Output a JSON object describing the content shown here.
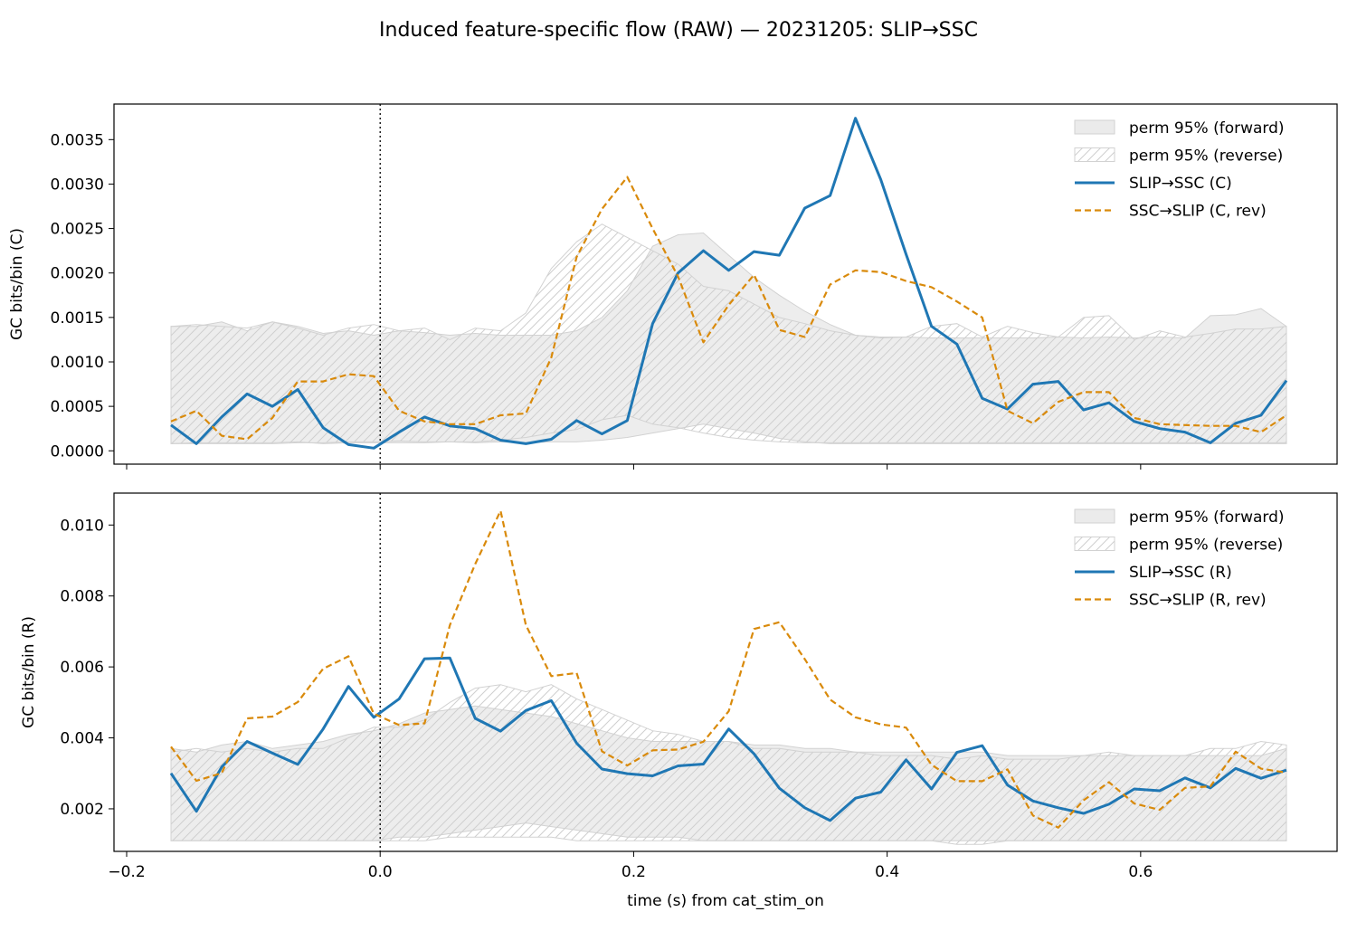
{
  "figure": {
    "title": "Induced feature-specific flow (RAW) — 20231205: SLIP→SSC",
    "xlabel": "time (s) from cat_stim_on"
  },
  "colors": {
    "forward": "#1f77b4",
    "reverse": "#d98a0b",
    "band_fill": "#ebebeb",
    "band_edge": "#d2d2d2",
    "hatch": "#cfcfcf",
    "stim_line": "#000000"
  },
  "chart_data": [
    {
      "type": "line",
      "ylabel": "GC bits/bin (C)",
      "xlim": [
        -0.21,
        0.755
      ],
      "ylim": [
        -0.00015,
        0.0039
      ],
      "xticks": [
        -0.2,
        0.0,
        0.2,
        0.4,
        0.6
      ],
      "xtick_labels": [],
      "yticks": [
        0.0,
        0.0005,
        0.001,
        0.0015,
        0.002,
        0.0025,
        0.003,
        0.0035
      ],
      "ytick_labels": [
        "0.0000",
        "0.0005",
        "0.0010",
        "0.0015",
        "0.0020",
        "0.0025",
        "0.0030",
        "0.0035"
      ],
      "vline_x": 0.0,
      "grid": false,
      "legend": {
        "placement": "top-right",
        "entries": [
          "perm 95% (forward)",
          "perm 95% (reverse)",
          "SLIP→SSC (C)",
          "SSC→SLIP (C, rev)"
        ]
      },
      "x": [
        -0.165,
        -0.145,
        -0.125,
        -0.105,
        -0.085,
        -0.065,
        -0.045,
        -0.025,
        -0.005,
        0.015,
        0.035,
        0.055,
        0.075,
        0.095,
        0.115,
        0.135,
        0.155,
        0.175,
        0.195,
        0.215,
        0.235,
        0.255,
        0.275,
        0.295,
        0.315,
        0.335,
        0.355,
        0.375,
        0.395,
        0.415,
        0.435,
        0.455,
        0.475,
        0.495,
        0.515,
        0.535,
        0.555,
        0.575,
        0.595,
        0.615,
        0.635,
        0.655,
        0.675,
        0.695,
        0.715
      ],
      "series": [
        {
          "name": "SLIP→SSC (C)",
          "style": "solid",
          "values": [
            0.00029,
            8e-05,
            0.00038,
            0.00064,
            0.0005,
            0.00069,
            0.00026,
            7e-05,
            3e-05,
            0.00021,
            0.00038,
            0.00028,
            0.00025,
            0.00012,
            8e-05,
            0.00013,
            0.00034,
            0.00019,
            0.00034,
            0.00143,
            0.002,
            0.00225,
            0.00203,
            0.00224,
            0.0022,
            0.00273,
            0.00287,
            0.00374,
            0.00305,
            0.00221,
            0.0014,
            0.0012,
            0.00059,
            0.00047,
            0.00075,
            0.00078,
            0.00046,
            0.00054,
            0.00033,
            0.00025,
            0.00021,
            9e-05,
            0.00031,
            0.0004,
            0.00079
          ]
        },
        {
          "name": "SSC→SLIP (C, rev)",
          "style": "dashed",
          "values": [
            0.00033,
            0.00045,
            0.00017,
            0.00013,
            0.00037,
            0.00078,
            0.00078,
            0.00086,
            0.00084,
            0.00045,
            0.00033,
            0.0003,
            0.0003,
            0.0004,
            0.00042,
            0.00105,
            0.00218,
            0.00272,
            0.00308,
            0.0025,
            0.00196,
            0.00122,
            0.00164,
            0.00198,
            0.00136,
            0.00128,
            0.00187,
            0.00203,
            0.00201,
            0.00191,
            0.00184,
            0.00168,
            0.0015,
            0.00045,
            0.00031,
            0.00055,
            0.00066,
            0.00066,
            0.00037,
            0.0003,
            0.00029,
            0.00028,
            0.00028,
            0.00021,
            0.0004
          ]
        }
      ],
      "bands": [
        {
          "name": "perm 95% (forward)",
          "style": "filled",
          "lower": [
            8e-05,
            9e-05,
            9e-05,
            9e-05,
            9e-05,
            0.0001,
            8e-05,
            9e-05,
            9e-05,
            9e-05,
            9e-05,
            0.0001,
            9e-05,
            0.0001,
            9e-05,
            0.0001,
            0.0001,
            0.00012,
            0.00015,
            0.0002,
            0.00025,
            0.0003,
            0.00025,
            0.0002,
            0.00014,
            0.0001,
            8e-05,
            8e-05,
            8e-05,
            8e-05,
            8e-05,
            8e-05,
            8e-05,
            8e-05,
            8e-05,
            8e-05,
            8e-05,
            8e-05,
            8e-05,
            8e-05,
            8e-05,
            8e-05,
            8e-05,
            8e-05,
            8e-05
          ],
          "upper": [
            0.0014,
            0.0014,
            0.00145,
            0.00135,
            0.00145,
            0.0014,
            0.00132,
            0.00135,
            0.0013,
            0.00135,
            0.00133,
            0.0013,
            0.00132,
            0.0013,
            0.0013,
            0.0013,
            0.00135,
            0.0015,
            0.0018,
            0.0023,
            0.00243,
            0.00245,
            0.0022,
            0.00195,
            0.00175,
            0.00157,
            0.00142,
            0.0013,
            0.00127,
            0.00128,
            0.00127,
            0.00127,
            0.00127,
            0.00127,
            0.00127,
            0.00128,
            0.00127,
            0.00128,
            0.00127,
            0.00128,
            0.00127,
            0.00152,
            0.00153,
            0.0016,
            0.0014
          ]
        },
        {
          "name": "perm 95% (reverse)",
          "style": "hatched",
          "lower": [
            8e-05,
            8e-05,
            8e-05,
            8e-05,
            8e-05,
            9e-05,
            9e-05,
            0.0001,
            0.0001,
            0.00011,
            0.0001,
            0.0001,
            0.0001,
            0.00012,
            0.00015,
            0.0002,
            0.00024,
            0.00035,
            0.0004,
            0.0003,
            0.00026,
            0.0002,
            0.00015,
            0.00012,
            0.0001,
            9e-05,
            9e-05,
            9e-05,
            9e-05,
            9e-05,
            9e-05,
            9e-05,
            9e-05,
            9e-05,
            9e-05,
            9e-05,
            9e-05,
            9e-05,
            9e-05,
            9e-05,
            9e-05,
            9e-05,
            9e-05,
            9e-05,
            9e-05
          ],
          "upper": [
            0.0014,
            0.00142,
            0.0014,
            0.00138,
            0.00145,
            0.00138,
            0.0013,
            0.00138,
            0.00142,
            0.00135,
            0.00138,
            0.00125,
            0.00138,
            0.00135,
            0.00155,
            0.00205,
            0.00235,
            0.00255,
            0.0024,
            0.00225,
            0.0021,
            0.00185,
            0.0018,
            0.00165,
            0.0015,
            0.00143,
            0.00135,
            0.0013,
            0.00128,
            0.00128,
            0.0014,
            0.00143,
            0.00128,
            0.0014,
            0.00133,
            0.00128,
            0.0015,
            0.00152,
            0.00125,
            0.00135,
            0.00128,
            0.00132,
            0.00137,
            0.00137,
            0.0014
          ]
        }
      ]
    },
    {
      "type": "line",
      "ylabel": "GC bits/bin (R)",
      "xlim": [
        -0.21,
        0.755
      ],
      "ylim": [
        0.0008,
        0.0109
      ],
      "xticks": [
        -0.2,
        0.0,
        0.2,
        0.4,
        0.6
      ],
      "xtick_labels": [
        "−0.2",
        "0.0",
        "0.2",
        "0.4",
        "0.6"
      ],
      "yticks": [
        0.002,
        0.004,
        0.006,
        0.008,
        0.01
      ],
      "ytick_labels": [
        "0.002",
        "0.004",
        "0.006",
        "0.008",
        "0.010"
      ],
      "vline_x": 0.0,
      "grid": false,
      "legend": {
        "placement": "top-right",
        "entries": [
          "perm 95% (forward)",
          "perm 95% (reverse)",
          "SLIP→SSC (R)",
          "SSC→SLIP (R, rev)"
        ]
      },
      "x": [
        -0.165,
        -0.145,
        -0.125,
        -0.105,
        -0.085,
        -0.065,
        -0.045,
        -0.025,
        -0.005,
        0.015,
        0.035,
        0.055,
        0.075,
        0.095,
        0.115,
        0.135,
        0.155,
        0.175,
        0.195,
        0.215,
        0.235,
        0.255,
        0.275,
        0.295,
        0.315,
        0.335,
        0.355,
        0.375,
        0.395,
        0.415,
        0.435,
        0.455,
        0.475,
        0.495,
        0.515,
        0.535,
        0.555,
        0.575,
        0.595,
        0.615,
        0.635,
        0.655,
        0.675,
        0.695,
        0.715
      ],
      "series": [
        {
          "name": "SLIP→SSC (R)",
          "style": "solid",
          "values": [
            0.003,
            0.00193,
            0.00318,
            0.0039,
            0.00357,
            0.00325,
            0.00425,
            0.00545,
            0.00458,
            0.0051,
            0.00623,
            0.00625,
            0.00455,
            0.00419,
            0.00477,
            0.00505,
            0.00385,
            0.00312,
            0.00299,
            0.00293,
            0.00321,
            0.00326,
            0.00425,
            0.00355,
            0.00258,
            0.00203,
            0.00167,
            0.0023,
            0.00247,
            0.00338,
            0.00256,
            0.00359,
            0.00378,
            0.00267,
            0.00222,
            0.00203,
            0.00187,
            0.00213,
            0.00256,
            0.00251,
            0.00287,
            0.00259,
            0.00314,
            0.00286,
            0.00309
          ]
        },
        {
          "name": "SSC→SLIP (R, rev)",
          "style": "dashed",
          "values": [
            0.00375,
            0.00279,
            0.00301,
            0.00455,
            0.0046,
            0.00501,
            0.00595,
            0.0063,
            0.00468,
            0.00436,
            0.00441,
            0.00718,
            0.0089,
            0.0104,
            0.00718,
            0.00574,
            0.00583,
            0.00362,
            0.00322,
            0.00365,
            0.00367,
            0.00389,
            0.00475,
            0.00707,
            0.00726,
            0.00622,
            0.00508,
            0.00458,
            0.00438,
            0.00429,
            0.00324,
            0.00278,
            0.00278,
            0.00311,
            0.00181,
            0.00147,
            0.00224,
            0.00275,
            0.00215,
            0.00197,
            0.00259,
            0.00263,
            0.00361,
            0.00313,
            0.00302
          ]
        }
      ],
      "bands": [
        {
          "name": "perm 95% (forward)",
          "style": "filled",
          "lower": [
            0.0011,
            0.0011,
            0.0011,
            0.0011,
            0.0011,
            0.0011,
            0.0011,
            0.0011,
            0.0011,
            0.0012,
            0.0012,
            0.0013,
            0.0014,
            0.0015,
            0.0016,
            0.0015,
            0.0014,
            0.0013,
            0.0012,
            0.0012,
            0.0012,
            0.0011,
            0.0011,
            0.0011,
            0.0011,
            0.0011,
            0.0011,
            0.0011,
            0.0011,
            0.0011,
            0.0011,
            0.0011,
            0.0011,
            0.0011,
            0.0011,
            0.0011,
            0.0011,
            0.0011,
            0.0011,
            0.0011,
            0.0011,
            0.0011,
            0.0011,
            0.0011,
            0.0011
          ],
          "upper": [
            0.0037,
            0.0036,
            0.0038,
            0.0039,
            0.0037,
            0.0038,
            0.0039,
            0.0041,
            0.0042,
            0.0044,
            0.0047,
            0.0048,
            0.0049,
            0.0048,
            0.0047,
            0.0046,
            0.0044,
            0.0042,
            0.004,
            0.0039,
            0.0039,
            0.0039,
            0.0039,
            0.0038,
            0.0038,
            0.0037,
            0.0037,
            0.0036,
            0.0036,
            0.0036,
            0.0036,
            0.0036,
            0.0036,
            0.0035,
            0.0035,
            0.0035,
            0.0035,
            0.0035,
            0.0035,
            0.0035,
            0.0035,
            0.0035,
            0.0035,
            0.0035,
            0.0037
          ]
        },
        {
          "name": "perm 95% (reverse)",
          "style": "hatched",
          "lower": [
            0.0011,
            0.0011,
            0.0011,
            0.0011,
            0.0011,
            0.0011,
            0.0011,
            0.0011,
            0.0011,
            0.0011,
            0.0011,
            0.0012,
            0.0012,
            0.0012,
            0.0012,
            0.0012,
            0.0011,
            0.0011,
            0.0011,
            0.0011,
            0.0011,
            0.0011,
            0.0011,
            0.0011,
            0.0011,
            0.0011,
            0.0011,
            0.0011,
            0.0011,
            0.0011,
            0.0011,
            0.001,
            0.001,
            0.0011,
            0.0011,
            0.0011,
            0.0011,
            0.0011,
            0.0011,
            0.0011,
            0.0011,
            0.0011,
            0.0011,
            0.0011,
            0.0011
          ],
          "upper": [
            0.0036,
            0.0037,
            0.0036,
            0.0037,
            0.0036,
            0.0037,
            0.0037,
            0.004,
            0.0043,
            0.0043,
            0.0045,
            0.005,
            0.0054,
            0.0055,
            0.0053,
            0.0055,
            0.0051,
            0.0048,
            0.0045,
            0.0042,
            0.0041,
            0.0039,
            0.0039,
            0.0037,
            0.0037,
            0.0036,
            0.0036,
            0.0036,
            0.0035,
            0.0035,
            0.0035,
            0.0034,
            0.0035,
            0.0034,
            0.0034,
            0.0034,
            0.0035,
            0.0036,
            0.0035,
            0.0035,
            0.0035,
            0.0037,
            0.0037,
            0.0039,
            0.0038
          ]
        }
      ]
    }
  ]
}
